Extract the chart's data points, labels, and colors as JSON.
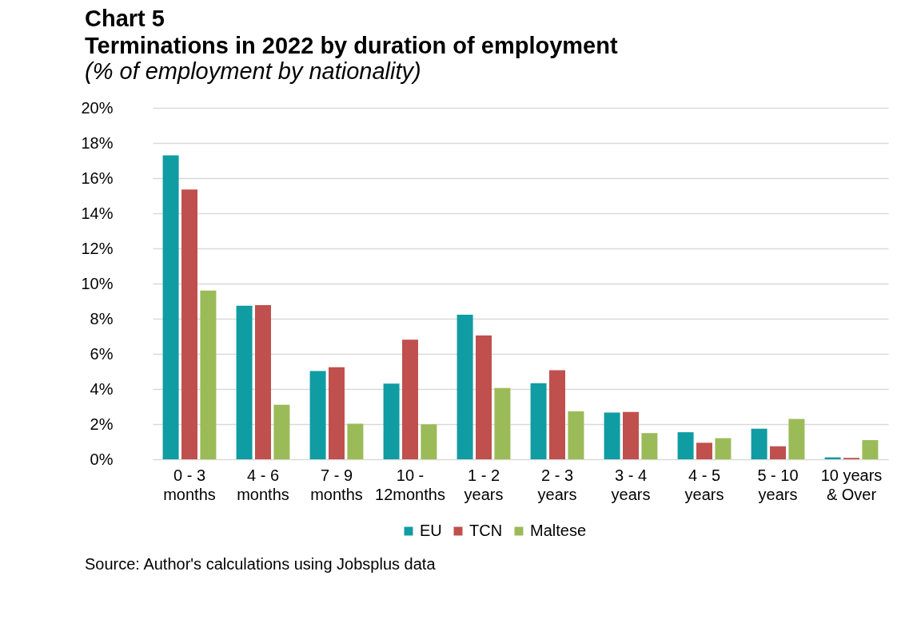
{
  "chart_data": {
    "type": "bar",
    "title": "Chart 5\nTerminations in 2022 by duration of employment",
    "subtitle": "(% of employment by nationality)",
    "categories": [
      "0 - 3\nmonths",
      "4 - 6\nmonths",
      "7 - 9\nmonths",
      "10 -\n12months",
      "1 - 2\nyears",
      "2 - 3\nyears",
      "3 - 4\nyears",
      "4 - 5\nyears",
      "5 - 10\nyears",
      "10 years\n& Over"
    ],
    "series": [
      {
        "name": "EU",
        "color": "#109ca3",
        "values": [
          17.3,
          8.74,
          5.02,
          4.31,
          8.23,
          4.33,
          2.66,
          1.54,
          1.74,
          0.11
        ]
      },
      {
        "name": "TCN",
        "color": "#c0504d",
        "values": [
          15.35,
          8.77,
          5.24,
          6.81,
          7.05,
          5.07,
          2.69,
          0.94,
          0.74,
          0.08
        ]
      },
      {
        "name": "Maltese",
        "color": "#9bbb59",
        "values": [
          9.6,
          3.1,
          2.02,
          1.99,
          4.06,
          2.73,
          1.49,
          1.2,
          2.3,
          1.09
        ]
      }
    ],
    "ylim": [
      0,
      20
    ],
    "yticks": [
      {
        "value": 0,
        "label": "0%"
      },
      {
        "value": 2,
        "label": "2%"
      },
      {
        "value": 4,
        "label": "4%"
      },
      {
        "value": 6,
        "label": "6%"
      },
      {
        "value": 8,
        "label": "8%"
      },
      {
        "value": 10,
        "label": "10%"
      },
      {
        "value": 12,
        "label": "12%"
      },
      {
        "value": 14,
        "label": "14%"
      },
      {
        "value": 16,
        "label": "16%"
      },
      {
        "value": 18,
        "label": "18%"
      },
      {
        "value": 20,
        "label": "20%"
      }
    ],
    "grid": "y",
    "legend": "bottom",
    "annotations": [
      "Source: Author's calculations using Jobsplus data"
    ]
  }
}
